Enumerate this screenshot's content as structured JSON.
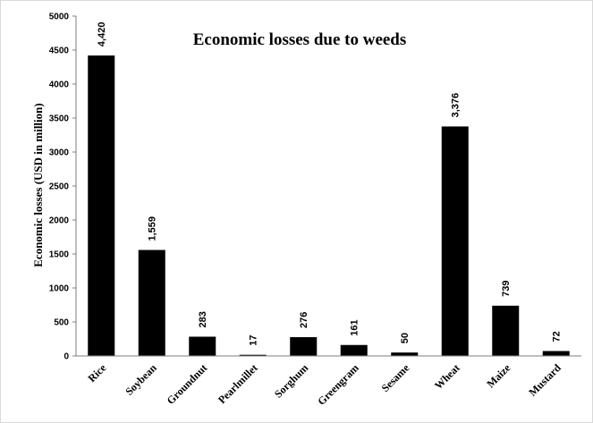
{
  "chart_data": {
    "type": "bar",
    "title": "Economic losses due to weeds",
    "xlabel": "",
    "ylabel": "Economic losses (USD in million)",
    "categories": [
      "Rice",
      "Soybean",
      "Groundnut",
      "Pearlmillet",
      "Sorghum",
      "Greengram",
      "Sesame",
      "Wheat",
      "Maize",
      "Mustard"
    ],
    "values": [
      4420,
      1559,
      283,
      17,
      276,
      161,
      50,
      3376,
      739,
      72
    ],
    "value_labels": [
      "4,420",
      "1,559",
      "283",
      "17",
      "276",
      "161",
      "50",
      "3,376",
      "739",
      "72"
    ],
    "ylim": [
      0,
      5000
    ],
    "yticks": [
      0,
      500,
      1000,
      1500,
      2000,
      2500,
      3000,
      3500,
      4000,
      4500,
      5000
    ],
    "bar_color": "#000000",
    "grid": false,
    "legend": "none"
  }
}
